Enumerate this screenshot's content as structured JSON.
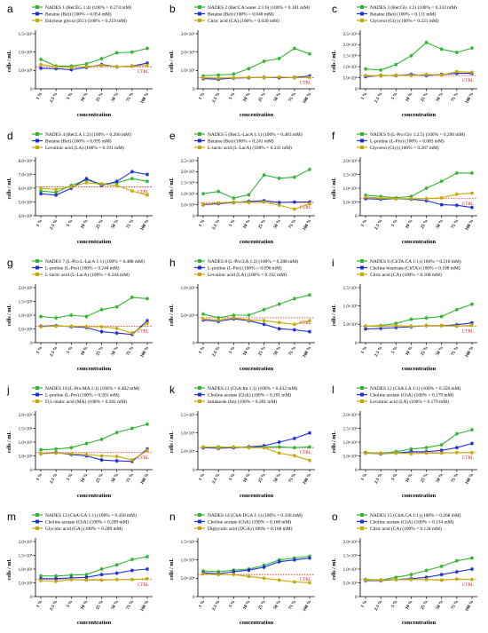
{
  "figure": {
    "x_categories": [
      "1 %",
      "2.5 %",
      "5 %",
      "10 %",
      "25 %",
      "50 %",
      "75 %",
      "100 %"
    ],
    "xlabel": "concentration",
    "ylabel": "cells / mL",
    "ctrl_label": "CTRL",
    "colors": {
      "green": "#2fb52f",
      "blue": "#1f2fd8",
      "yellow": "#c8a800",
      "ctrl": "#e02020",
      "axis": "#000000"
    }
  },
  "chart_data": [
    {
      "type": "line",
      "panel": "a",
      "ylim": [
        0,
        150000
      ],
      "yticks": [
        "0",
        "5.0×10⁴",
        "1.0×10⁵",
        "1.5×10⁵"
      ],
      "ctrl": 60000,
      "series": [
        {
          "name": "NADES 1 (Bet:EG 1:4) (100% = 0.274 mM)",
          "color": "green",
          "values": [
            80000,
            62000,
            62000,
            68000,
            82000,
            98000,
            100000,
            110000
          ]
        },
        {
          "name": "Betaine (Bet) (100% = 0.054 mM)",
          "color": "blue",
          "values": [
            56000,
            55000,
            52000,
            58000,
            66000,
            60000,
            62000,
            70000
          ]
        },
        {
          "name": "Ethylene glycol (EG) (100% = 0.219 mM)",
          "color": "yellow",
          "values": [
            66000,
            60000,
            58000,
            60000,
            64000,
            60000,
            62000,
            64000
          ]
        }
      ]
    },
    {
      "type": "line",
      "panel": "b",
      "ylim": [
        0,
        300000
      ],
      "yticks": [
        "0",
        "1.0×10⁵",
        "2.0×10⁵",
        "3.0×10⁵"
      ],
      "ctrl": 60000,
      "series": [
        {
          "name": "NADES 2 (Bet:CA:water 2:1:6) (100% = 0.181 mM)",
          "color": "green",
          "values": [
            70000,
            75000,
            80000,
            110000,
            150000,
            165000,
            220000,
            190000
          ]
        },
        {
          "name": "Betaine (Bet) (100% = 0.040 mM)",
          "color": "blue",
          "values": [
            55000,
            52000,
            58000,
            60000,
            62000,
            60000,
            62000,
            70000
          ]
        },
        {
          "name": "Citric acid (CA) (100% = 0.020 mM)",
          "color": "yellow",
          "values": [
            60000,
            58000,
            60000,
            62000,
            60000,
            64000,
            60000,
            62000
          ]
        }
      ]
    },
    {
      "type": "line",
      "panel": "c",
      "ylim": [
        0,
        250000
      ],
      "yticks": [
        "0",
        "5.0×10⁴",
        "1.0×10⁵",
        "1.5×10⁵",
        "2.0×10⁵",
        "2.5×10⁵"
      ],
      "ctrl": 60000,
      "series": [
        {
          "name": "NADES 3 (Bet:Gly 1:2) (100% = 0.332 mM)",
          "color": "green",
          "values": [
            90000,
            85000,
            110000,
            150000,
            210000,
            180000,
            165000,
            185000
          ]
        },
        {
          "name": "Betaine (Bet) (100% = 0.111 mM)",
          "color": "blue",
          "values": [
            55000,
            60000,
            60000,
            65000,
            60000,
            65000,
            70000,
            70000
          ]
        },
        {
          "name": "Glycerol (Gly) (100% = 0.221 mM)",
          "color": "yellow",
          "values": [
            60000,
            58000,
            62000,
            60000,
            65000,
            62000,
            78000,
            75000
          ]
        }
      ]
    },
    {
      "type": "line",
      "panel": "d",
      "ylim": [
        40000,
        80000
      ],
      "yticks": [
        "4.0×10⁴",
        "5.0×10⁴",
        "6.0×10⁴",
        "7.0×10⁴",
        "8.0×10⁴"
      ],
      "ctrl": 61000,
      "series": [
        {
          "name": "NADES 4 (Bet:LA 1:2) (100% = 0.266 mM)",
          "color": "green",
          "values": [
            58000,
            57000,
            62000,
            66000,
            63000,
            64000,
            67000,
            65000
          ]
        },
        {
          "name": "Betaine (Bet) (100% = 0.095 mM)",
          "color": "blue",
          "values": [
            56000,
            55000,
            60000,
            67000,
            62000,
            65000,
            72000,
            70000
          ]
        },
        {
          "name": "Levulinic acid (LA) (100% = 0.191 mM)",
          "color": "yellow",
          "values": [
            60000,
            59000,
            61000,
            64000,
            63000,
            62000,
            58000,
            55000
          ]
        }
      ]
    },
    {
      "type": "line",
      "panel": "e",
      "ylim": [
        0,
        250000
      ],
      "yticks": [
        "0",
        "5.0×10⁴",
        "1.0×10⁵",
        "1.5×10⁵",
        "2.0×10⁵",
        "2.5×10⁵"
      ],
      "ctrl": 60000,
      "series": [
        {
          "name": "NADES 5 (Bet:L-LacA 1:1) (100% = 0.483 mM)",
          "color": "green",
          "values": [
            100000,
            110000,
            80000,
            95000,
            185000,
            170000,
            175000,
            210000
          ]
        },
        {
          "name": "Betaine (Bet) (100% = 0.241 mM)",
          "color": "blue",
          "values": [
            50000,
            55000,
            60000,
            65000,
            68000,
            60000,
            62000,
            62000
          ]
        },
        {
          "name": "L-lactic acid (L-LacA) (100% = 0.241 mM)",
          "color": "yellow",
          "values": [
            52000,
            58000,
            62000,
            60000,
            62000,
            48000,
            30000,
            55000
          ]
        }
      ]
    },
    {
      "type": "line",
      "panel": "f",
      "ylim": [
        0,
        200000
      ],
      "yticks": [
        "0",
        "5.0×10⁴",
        "1.0×10⁵",
        "1.5×10⁵",
        "2.0×10⁵"
      ],
      "ctrl": 62000,
      "series": [
        {
          "name": "NADES 6 (L-Pro:Gly 1:2.5) (100% = 0.290 mM)",
          "color": "green",
          "values": [
            75000,
            70000,
            65000,
            70000,
            100000,
            125000,
            155000,
            155000
          ]
        },
        {
          "name": "L-proline (L-Pro) (100% = 0.083 mM)",
          "color": "blue",
          "values": [
            62000,
            60000,
            62000,
            60000,
            55000,
            40000,
            38000,
            30000
          ]
        },
        {
          "name": "Glycerol (Gly) (100% = 0.207 mM)",
          "color": "yellow",
          "values": [
            68000,
            64000,
            62000,
            62000,
            62000,
            65000,
            78000,
            82000
          ]
        }
      ]
    },
    {
      "type": "line",
      "panel": "g",
      "ylim": [
        0,
        200000
      ],
      "yticks": [
        "0",
        "5.0×10⁴",
        "1.0×10⁵",
        "1.5×10⁵",
        "2.0×10⁵"
      ],
      "ctrl": 60000,
      "series": [
        {
          "name": "NADES 7 (L-Pro:L-LacA 1:1) (100% = 0.488 mM)",
          "color": "green",
          "values": [
            95000,
            90000,
            100000,
            95000,
            120000,
            130000,
            165000,
            160000
          ]
        },
        {
          "name": "L-proline (L-Pro) (100% = 0.244 mM)",
          "color": "blue",
          "values": [
            60000,
            62000,
            58000,
            55000,
            40000,
            35000,
            30000,
            80000
          ]
        },
        {
          "name": "L-lactic acid (L-LacA) (100% = 0.244 mM)",
          "color": "yellow",
          "values": [
            58000,
            60000,
            60000,
            58000,
            58000,
            52000,
            35000,
            70000
          ]
        }
      ]
    },
    {
      "type": "line",
      "panel": "h",
      "ylim": [
        0,
        150000
      ],
      "yticks": [
        "0",
        "5.0×10⁴",
        "1.0×10⁵"
      ],
      "ctrl": 68000,
      "series": [
        {
          "name": "NADES 8 (L-Pro:LA 1:2) (100% = 0.288 mM)",
          "color": "green",
          "values": [
            78000,
            68000,
            75000,
            75000,
            90000,
            105000,
            120000,
            130000
          ]
        },
        {
          "name": "L-proline (L-Pro) (100% = 0.096 mM)",
          "color": "blue",
          "values": [
            62000,
            58000,
            65000,
            60000,
            50000,
            38000,
            35000,
            30000
          ]
        },
        {
          "name": "Levulinic acid (LA) (100% = 0.192 mM)",
          "color": "yellow",
          "values": [
            65000,
            62000,
            68000,
            62000,
            60000,
            55000,
            50000,
            60000
          ]
        }
      ]
    },
    {
      "type": "line",
      "panel": "i",
      "ylim": [
        0,
        200000
      ],
      "yticks": [
        "0",
        "5.0×10⁴",
        "1.0×10⁵",
        "1.5×10⁵"
      ],
      "ctrl": 60000,
      "series": [
        {
          "name": "NADES 9 (ChTA:CA 1:1) (100% = 0.216 mM)",
          "color": "green",
          "values": [
            60000,
            62000,
            70000,
            85000,
            90000,
            95000,
            120000,
            140000
          ]
        },
        {
          "name": "Choline bitartrate (ChTA) (100% = 0.108 mM)",
          "color": "blue",
          "values": [
            50000,
            52000,
            55000,
            58000,
            62000,
            62000,
            65000,
            72000
          ]
        },
        {
          "name": "Citric acid (CA) (100% = 0.108 mM)",
          "color": "yellow",
          "values": [
            60000,
            60000,
            62000,
            60000,
            62000,
            62000,
            60000,
            64000
          ]
        }
      ]
    },
    {
      "type": "line",
      "panel": "j",
      "ylim": [
        0,
        200000
      ],
      "yticks": [
        "0",
        "5.0×10⁴",
        "1.0×10⁵",
        "1.5×10⁵",
        "2.0×10⁵"
      ],
      "ctrl": 62000,
      "series": [
        {
          "name": "NADES 10 (L-Pro:MA 1:1) (100% = 0.402 mM)",
          "color": "green",
          "values": [
            72000,
            75000,
            80000,
            95000,
            110000,
            135000,
            150000,
            165000
          ]
        },
        {
          "name": "L-proline (L-Pro) (100% = 0.201 mM)",
          "color": "blue",
          "values": [
            58000,
            62000,
            55000,
            50000,
            35000,
            32000,
            30000,
            75000
          ]
        },
        {
          "name": "D,L-malic acid (MA) (100% = 0.201 mM)",
          "color": "yellow",
          "values": [
            58000,
            60000,
            58000,
            55000,
            50000,
            48000,
            35000,
            70000
          ]
        }
      ]
    },
    {
      "type": "line",
      "panel": "k",
      "ylim": [
        0,
        150000
      ],
      "yticks": [
        "0",
        "5.0×10⁴",
        "1.0×10⁵",
        "1.5×10⁵"
      ],
      "ctrl": 60000,
      "series": [
        {
          "name": "NADES 11 (ChA:Im 1:1) (100% = 0.432 mM)",
          "color": "green",
          "values": [
            60000,
            62000,
            60000,
            62000,
            62000,
            62000,
            60000,
            62000
          ]
        },
        {
          "name": "Choline acetate (ChA) (100% = 0.201 mM)",
          "color": "blue",
          "values": [
            60000,
            58000,
            60000,
            62000,
            65000,
            75000,
            85000,
            100000
          ]
        },
        {
          "name": "Imidazole (Im) (100% = 0.201 mM)",
          "color": "yellow",
          "values": [
            62000,
            60000,
            62000,
            60000,
            60000,
            45000,
            38000,
            25000
          ]
        }
      ]
    },
    {
      "type": "line",
      "panel": "l",
      "ylim": [
        0,
        200000
      ],
      "yticks": [
        "0",
        "5.0×10⁴",
        "1.0×10⁵",
        "1.5×10⁵",
        "2.0×10⁵"
      ],
      "ctrl": 62000,
      "series": [
        {
          "name": "NADES 12 (ChA:LA 1:1) (100% = 0.358 mM)",
          "color": "green",
          "values": [
            62000,
            60000,
            65000,
            75000,
            80000,
            90000,
            130000,
            145000
          ]
        },
        {
          "name": "Choline acetate (ChA) (100% = 0.179 mM)",
          "color": "blue",
          "values": [
            60000,
            58000,
            60000,
            65000,
            65000,
            70000,
            80000,
            95000
          ]
        },
        {
          "name": "Levulinic acid (LA) (100% = 0.179 mM)",
          "color": "yellow",
          "values": [
            60000,
            60000,
            60000,
            58000,
            60000,
            60000,
            62000,
            62000
          ]
        }
      ]
    },
    {
      "type": "line",
      "panel": "m",
      "ylim": [
        0,
        200000
      ],
      "yticks": [
        "0",
        "5.0×10⁴",
        "1.0×10⁵",
        "1.5×10⁵",
        "2.0×10⁵"
      ],
      "ctrl": 62000,
      "series": [
        {
          "name": "NADES 13 (ChA:GA 1:1) (100% = 0.418 mM)",
          "color": "green",
          "values": [
            75000,
            75000,
            78000,
            80000,
            100000,
            115000,
            135000,
            145000
          ]
        },
        {
          "name": "Choline acetate (ChA) (100% = 0.209 mM)",
          "color": "blue",
          "values": [
            65000,
            65000,
            68000,
            70000,
            80000,
            85000,
            95000,
            100000
          ]
        },
        {
          "name": "Glycolic acid (GA) (100% = 0.209 mM)",
          "color": "yellow",
          "values": [
            58000,
            55000,
            62000,
            60000,
            60000,
            62000,
            62000,
            65000
          ]
        }
      ]
    },
    {
      "type": "line",
      "panel": "n",
      "ylim": [
        0,
        150000
      ],
      "yticks": [
        "0",
        "5.0×10⁴",
        "1.0×10⁵",
        "1.5×10⁵"
      ],
      "ctrl": 60000,
      "series": [
        {
          "name": "NADES 14 (ChA:DGA 1:1) (100% = 0.336 mM)",
          "color": "green",
          "values": [
            70000,
            68000,
            72000,
            75000,
            85000,
            100000,
            105000,
            110000
          ]
        },
        {
          "name": "Choline acetate (ChA) (100% = 0.168 mM)",
          "color": "blue",
          "values": [
            65000,
            62000,
            68000,
            72000,
            80000,
            95000,
            100000,
            105000
          ]
        },
        {
          "name": "Diglycolic acid (DGA) (100% = 0.168 mM)",
          "color": "yellow",
          "values": [
            62000,
            60000,
            60000,
            55000,
            50000,
            45000,
            40000,
            38000
          ]
        }
      ]
    },
    {
      "type": "line",
      "panel": "o",
      "ylim": [
        0,
        200000
      ],
      "yticks": [
        "0",
        "5.0×10⁴",
        "1.0×10⁵",
        "1.5×10⁵",
        "2.0×10⁵"
      ],
      "ctrl": 62000,
      "series": [
        {
          "name": "NADES 15 (ChA:CA 1:1) (100% = 0.268 mM)",
          "color": "green",
          "values": [
            62000,
            60000,
            70000,
            80000,
            95000,
            110000,
            130000,
            140000
          ]
        },
        {
          "name": "Choline acetate (ChA) (100% = 0.134 mM)",
          "color": "blue",
          "values": [
            58000,
            58000,
            62000,
            65000,
            70000,
            80000,
            90000,
            100000
          ]
        },
        {
          "name": "Citric acid (CA) (100% = 0.134 mM)",
          "color": "yellow",
          "values": [
            60000,
            60000,
            62000,
            62000,
            62000,
            60000,
            64000,
            62000
          ]
        }
      ]
    }
  ]
}
